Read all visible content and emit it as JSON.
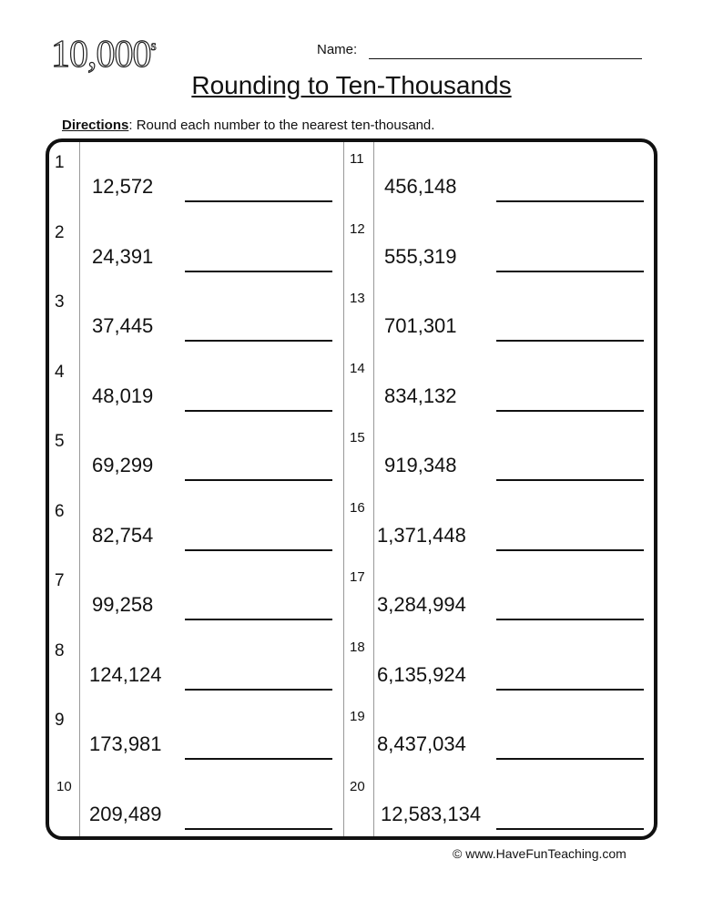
{
  "header": {
    "logo": "10,000",
    "logo_suffix": "s",
    "name_label": "Name:",
    "title": "Rounding to Ten-Thousands"
  },
  "directions": {
    "label": "Directions",
    "text": ": Round each number to the nearest ten-thousand."
  },
  "problems": [
    {
      "n": "1",
      "value": "12,572"
    },
    {
      "n": "2",
      "value": "24,391"
    },
    {
      "n": "3",
      "value": "37,445"
    },
    {
      "n": "4",
      "value": "48,019"
    },
    {
      "n": "5",
      "value": "69,299"
    },
    {
      "n": "6",
      "value": "82,754"
    },
    {
      "n": "7",
      "value": "99,258"
    },
    {
      "n": "8",
      "value": "124,124"
    },
    {
      "n": "9",
      "value": "173,981"
    },
    {
      "n": "10",
      "value": "209,489"
    },
    {
      "n": "11",
      "value": "456,148"
    },
    {
      "n": "12",
      "value": "555,319"
    },
    {
      "n": "13",
      "value": "701,301"
    },
    {
      "n": "14",
      "value": "834,132"
    },
    {
      "n": "15",
      "value": "919,348"
    },
    {
      "n": "16",
      "value": "1,371,448"
    },
    {
      "n": "17",
      "value": "3,284,994"
    },
    {
      "n": "18",
      "value": "6,135,924"
    },
    {
      "n": "19",
      "value": "8,437,034"
    },
    {
      "n": "20",
      "value": "12,583,134"
    }
  ],
  "footer": "© www.HaveFunTeaching.com"
}
